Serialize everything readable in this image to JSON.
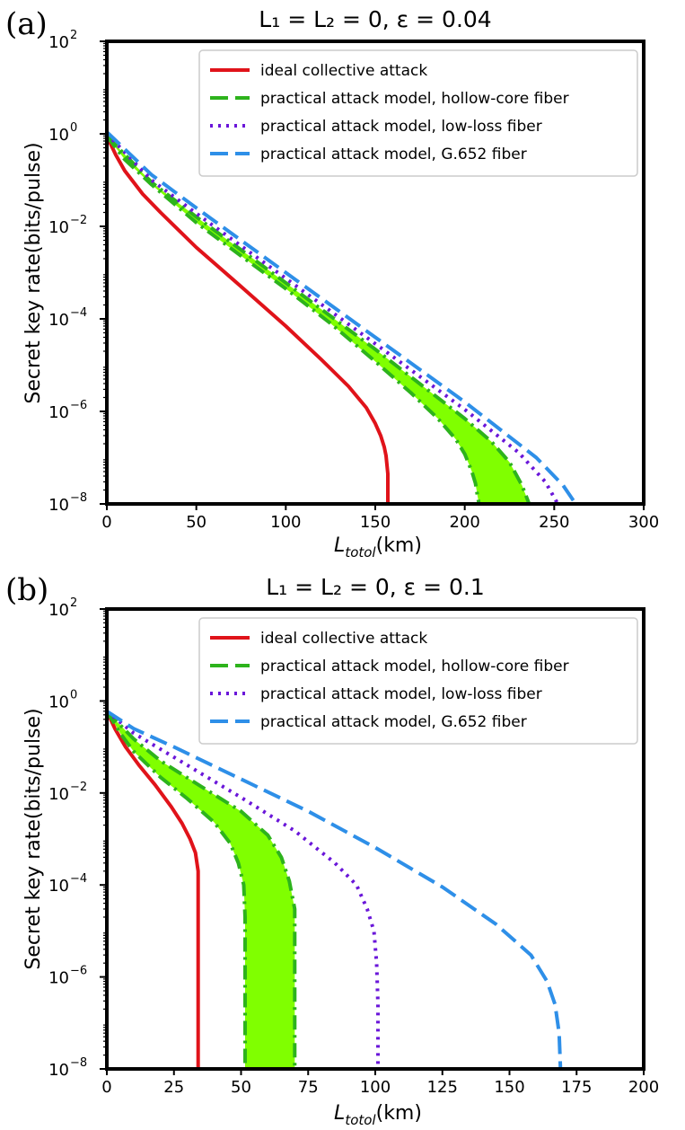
{
  "chart_data": [
    {
      "type": "line",
      "panel_label": "(a)",
      "title": "L₁ = L₂ = 0, ε = 0.04",
      "xlabel_main": "L",
      "xlabel_sub": "totol",
      "xlabel_unit": "(km)",
      "ylabel": "Secret key rate(bits/pulse)",
      "xscale": "linear",
      "yscale": "log",
      "xlim": [
        0,
        300
      ],
      "ylim": [
        1e-08,
        100
      ],
      "xticks": [
        "0",
        "50",
        "100",
        "150",
        "200",
        "250",
        "300"
      ],
      "yticks": [
        {
          "base": "10",
          "exp": "2"
        },
        {
          "base": "10",
          "exp": "0"
        },
        {
          "base": "10",
          "exp": "−2"
        },
        {
          "base": "10",
          "exp": "−4"
        },
        {
          "base": "10",
          "exp": "−6"
        },
        {
          "base": "10",
          "exp": "−8"
        }
      ],
      "legend_position": "top-right",
      "series": [
        {
          "name": "ideal collective attack",
          "color": "#e0131a",
          "style": "solid",
          "x": [
            0,
            5,
            10,
            20,
            30,
            50,
            75,
            100,
            120,
            135,
            145,
            150,
            153,
            155,
            156,
            157,
            157
          ],
          "y": [
            0.9,
            0.35,
            0.16,
            0.05,
            0.02,
            0.0035,
            0.0005,
            7e-05,
            1.3e-05,
            3.5e-06,
            1.2e-06,
            5.5e-07,
            3e-07,
            1.7e-07,
            1.1e-07,
            4.5e-08,
            1e-08
          ]
        },
        {
          "name": "practical attack model, hollow-core fiber",
          "color": "#2db31c",
          "style": "dashdot",
          "fill": "#80ff00",
          "x": [
            0,
            10,
            25,
            50,
            75,
            100,
            125,
            150,
            170,
            185,
            195,
            200,
            204,
            206,
            207,
            208
          ],
          "y": [
            0.9,
            0.28,
            0.08,
            0.012,
            0.0023,
            0.00045,
            8e-05,
            1.2e-05,
            2.5e-06,
            7e-07,
            2.5e-07,
            1.2e-07,
            5e-08,
            2.8e-08,
            1.6e-08,
            1e-08
          ],
          "upper_x": [
            0,
            25,
            50,
            100,
            150,
            200,
            215,
            225,
            232,
            236
          ],
          "upper_y": [
            0.9,
            0.09,
            0.016,
            0.0006,
            2.2e-05,
            7e-07,
            2.2e-07,
            8e-08,
            2.5e-08,
            1e-08
          ]
        },
        {
          "name": "practical attack model, low-loss fiber",
          "color": "#6a16d9",
          "style": "dotted",
          "x": [
            0,
            25,
            50,
            100,
            150,
            200,
            230,
            245,
            252
          ],
          "y": [
            1.0,
            0.1,
            0.019,
            0.00075,
            2.9e-05,
            1.1e-06,
            1.3e-07,
            3e-08,
            1e-08
          ]
        },
        {
          "name": "practical attack model, G.652 fiber",
          "color": "#2e8fe8",
          "style": "dashed",
          "x": [
            0,
            25,
            50,
            100,
            150,
            200,
            240,
            255,
            262
          ],
          "y": [
            1.1,
            0.13,
            0.025,
            0.001,
            4e-05,
            1.6e-06,
            1e-07,
            2.5e-08,
            1e-08
          ]
        }
      ]
    },
    {
      "type": "line",
      "panel_label": "(b)",
      "title": "L₁ = L₂ = 0, ε = 0.1",
      "xlabel_main": "L",
      "xlabel_sub": "totol",
      "xlabel_unit": "(km)",
      "ylabel": "Secret key rate(bits/pulse)",
      "xscale": "linear",
      "yscale": "log",
      "xlim": [
        0,
        200
      ],
      "ylim": [
        1e-08,
        100
      ],
      "xticks": [
        "0",
        "25",
        "50",
        "75",
        "100",
        "125",
        "150",
        "175",
        "200"
      ],
      "yticks": [
        {
          "base": "10",
          "exp": "2"
        },
        {
          "base": "10",
          "exp": "0"
        },
        {
          "base": "10",
          "exp": "−2"
        },
        {
          "base": "10",
          "exp": "−4"
        },
        {
          "base": "10",
          "exp": "−6"
        },
        {
          "base": "10",
          "exp": "−8"
        }
      ],
      "legend_position": "top-right",
      "series": [
        {
          "name": "ideal collective attack",
          "color": "#e0131a",
          "style": "solid",
          "x": [
            0,
            3,
            7,
            12,
            18,
            24,
            28,
            31,
            33,
            34,
            34,
            34
          ],
          "y": [
            0.6,
            0.25,
            0.1,
            0.04,
            0.015,
            0.005,
            0.0022,
            0.001,
            0.0005,
            0.0002,
            5e-05,
            1e-08
          ]
        },
        {
          "name": "practical attack model, hollow-core fiber",
          "color": "#2db31c",
          "style": "dashdot",
          "fill": "#80ff00",
          "x": [
            0,
            5,
            10,
            20,
            30,
            40,
            46,
            49,
            51,
            51.5,
            51.5,
            51.5
          ],
          "y": [
            0.6,
            0.2,
            0.08,
            0.022,
            0.0075,
            0.0023,
            0.0008,
            0.0003,
            0.0001,
            2e-05,
            1e-06,
            1e-08
          ],
          "upper_x": [
            0,
            10,
            20,
            35,
            50,
            60,
            65,
            68,
            70,
            70,
            70
          ],
          "upper_y": [
            0.6,
            0.15,
            0.05,
            0.014,
            0.004,
            0.0012,
            0.0004,
            0.00012,
            3e-05,
            2e-06,
            1e-08
          ]
        },
        {
          "name": "practical attack model, low-loss fiber",
          "color": "#6a16d9",
          "style": "dotted",
          "x": [
            0,
            10,
            25,
            50,
            70,
            85,
            93,
            97,
            99.5,
            100.5,
            101,
            101
          ],
          "y": [
            0.6,
            0.2,
            0.06,
            0.008,
            0.0015,
            0.0003,
            0.0001,
            3e-05,
            1e-05,
            2e-06,
            2.5e-07,
            1e-08
          ]
        },
        {
          "name": "practical attack model, G.652 fiber",
          "color": "#2e8fe8",
          "style": "dashed",
          "x": [
            0,
            10,
            25,
            50,
            75,
            100,
            125,
            145,
            158,
            164,
            167,
            168.5,
            169
          ],
          "y": [
            0.6,
            0.25,
            0.1,
            0.02,
            0.004,
            0.00065,
            9e-05,
            1.4e-05,
            3e-06,
            8e-07,
            2.5e-07,
            6e-08,
            1e-08
          ]
        }
      ]
    }
  ]
}
